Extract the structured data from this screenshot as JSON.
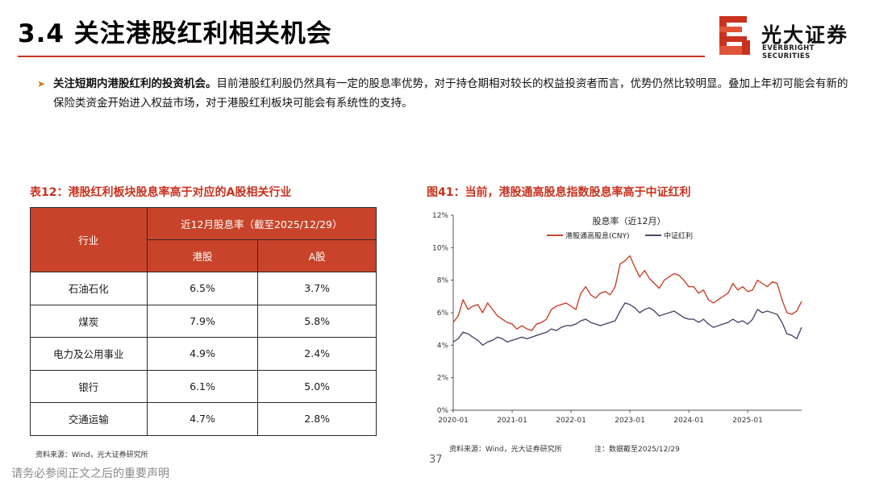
{
  "header": {
    "title": "3.4 关注港股红利相关机会"
  },
  "brand": {
    "name_cn": "光大证券",
    "name_en": "EVERBRIGHT SECURITIES",
    "accent": "#c8321e"
  },
  "summary": {
    "bold_lead": "关注短期内港股红利的投资机会。",
    "text": "目前港股红利股仍然具有一定的股息率优势，对于持仓期相对较长的权益投资者而言，优势仍然比较明显。叠加上年初可能会有新的保险类资金开始进入权益市场，对于港股红利板块可能会有系统性的支持。"
  },
  "table": {
    "caption": "表12：港股红利板块股息率高于对应的A股相关行业",
    "header_industry": "行业",
    "header_group": "近12月股息率（截至2025/12/29）",
    "header_hk": "港股",
    "header_a": "A股",
    "rows": [
      {
        "industry": "石油石化",
        "hk": "6.5%",
        "a": "3.7%"
      },
      {
        "industry": "煤炭",
        "hk": "7.9%",
        "a": "5.8%"
      },
      {
        "industry": "电力及公用事业",
        "hk": "4.9%",
        "a": "2.4%"
      },
      {
        "industry": "银行",
        "hk": "6.1%",
        "a": "5.0%"
      },
      {
        "industry": "交通运输",
        "hk": "4.7%",
        "a": "2.8%"
      }
    ],
    "source": "资料来源：Wind，光大证券研究所"
  },
  "figure": {
    "caption": "图41：当前，港股通高股息指数股息率高于中证红利",
    "source": "资料来源：Wind，光大证券研究所",
    "note": "注：数据截至2025/12/29"
  },
  "chart_data": {
    "type": "line",
    "title": "股息率（近12月）",
    "xlabel": "",
    "ylabel": "",
    "ylim": [
      0,
      12
    ],
    "yticks": [
      "0%",
      "2%",
      "4%",
      "6%",
      "8%",
      "10%",
      "12%"
    ],
    "xticks": [
      "2020-01",
      "2021-01",
      "2022-01",
      "2023-01",
      "2024-01",
      "2025-01"
    ],
    "xrange": [
      "2020-01",
      "2025-12"
    ],
    "legend_position": "top",
    "series": [
      {
        "name": "港股通高股息(CNY)",
        "color": "#c8432a",
        "x": [
          "2020-01",
          "2020-02",
          "2020-03",
          "2020-04",
          "2020-05",
          "2020-06",
          "2020-07",
          "2020-08",
          "2020-09",
          "2020-10",
          "2020-11",
          "2020-12",
          "2021-01",
          "2021-02",
          "2021-03",
          "2021-04",
          "2021-05",
          "2021-06",
          "2021-07",
          "2021-08",
          "2021-09",
          "2021-10",
          "2021-11",
          "2021-12",
          "2022-01",
          "2022-02",
          "2022-03",
          "2022-04",
          "2022-05",
          "2022-06",
          "2022-07",
          "2022-08",
          "2022-09",
          "2022-10",
          "2022-11",
          "2022-12",
          "2023-01",
          "2023-02",
          "2023-03",
          "2023-04",
          "2023-05",
          "2023-06",
          "2023-07",
          "2023-08",
          "2023-09",
          "2023-10",
          "2023-11",
          "2023-12",
          "2024-01",
          "2024-02",
          "2024-03",
          "2024-04",
          "2024-05",
          "2024-06",
          "2024-07",
          "2024-08",
          "2024-09",
          "2024-10",
          "2024-11",
          "2024-12",
          "2025-01",
          "2025-02",
          "2025-03",
          "2025-04",
          "2025-05",
          "2025-06",
          "2025-07",
          "2025-08",
          "2025-09",
          "2025-10",
          "2025-11",
          "2025-12"
        ],
        "values": [
          5.4,
          5.8,
          6.8,
          6.2,
          6.4,
          6.5,
          6.0,
          6.6,
          6.2,
          5.8,
          5.6,
          5.4,
          5.3,
          5.0,
          5.2,
          5.0,
          4.9,
          5.3,
          5.4,
          5.6,
          6.2,
          6.4,
          6.5,
          6.6,
          6.4,
          6.2,
          7.2,
          7.6,
          7.1,
          6.9,
          7.2,
          7.3,
          7.1,
          7.6,
          9.0,
          9.2,
          9.5,
          8.8,
          8.2,
          8.6,
          8.1,
          7.8,
          7.5,
          8.0,
          8.2,
          8.4,
          8.3,
          8.0,
          7.6,
          7.6,
          7.2,
          7.4,
          6.8,
          6.6,
          6.8,
          7.0,
          7.2,
          7.8,
          7.4,
          7.6,
          7.3,
          7.4,
          8.0,
          7.8,
          7.6,
          7.9,
          7.8,
          6.8,
          6.0,
          5.9,
          6.1,
          6.7
        ]
      },
      {
        "name": "中证红利",
        "color": "#4a4a6e",
        "x": [
          "2020-01",
          "2020-02",
          "2020-03",
          "2020-04",
          "2020-05",
          "2020-06",
          "2020-07",
          "2020-08",
          "2020-09",
          "2020-10",
          "2020-11",
          "2020-12",
          "2021-01",
          "2021-02",
          "2021-03",
          "2021-04",
          "2021-05",
          "2021-06",
          "2021-07",
          "2021-08",
          "2021-09",
          "2021-10",
          "2021-11",
          "2021-12",
          "2022-01",
          "2022-02",
          "2022-03",
          "2022-04",
          "2022-05",
          "2022-06",
          "2022-07",
          "2022-08",
          "2022-09",
          "2022-10",
          "2022-11",
          "2022-12",
          "2023-01",
          "2023-02",
          "2023-03",
          "2023-04",
          "2023-05",
          "2023-06",
          "2023-07",
          "2023-08",
          "2023-09",
          "2023-10",
          "2023-11",
          "2023-12",
          "2024-01",
          "2024-02",
          "2024-03",
          "2024-04",
          "2024-05",
          "2024-06",
          "2024-07",
          "2024-08",
          "2024-09",
          "2024-10",
          "2024-11",
          "2024-12",
          "2025-01",
          "2025-02",
          "2025-03",
          "2025-04",
          "2025-05",
          "2025-06",
          "2025-07",
          "2025-08",
          "2025-09",
          "2025-10",
          "2025-11",
          "2025-12"
        ],
        "values": [
          4.2,
          4.4,
          4.8,
          4.7,
          4.5,
          4.3,
          4.0,
          4.2,
          4.3,
          4.5,
          4.4,
          4.2,
          4.3,
          4.4,
          4.5,
          4.4,
          4.5,
          4.6,
          4.7,
          4.8,
          5.0,
          4.9,
          5.1,
          5.2,
          5.2,
          5.3,
          5.5,
          5.6,
          5.4,
          5.3,
          5.2,
          5.3,
          5.4,
          5.5,
          6.1,
          6.6,
          6.5,
          6.3,
          6.0,
          6.2,
          6.3,
          6.1,
          5.8,
          5.9,
          6.0,
          6.1,
          5.9,
          5.7,
          5.6,
          5.6,
          5.4,
          5.6,
          5.3,
          5.1,
          5.2,
          5.3,
          5.4,
          5.6,
          5.4,
          5.5,
          5.3,
          5.6,
          6.2,
          6.0,
          6.1,
          6.0,
          5.9,
          5.4,
          4.7,
          4.6,
          4.4,
          5.1
        ]
      }
    ]
  }
}
